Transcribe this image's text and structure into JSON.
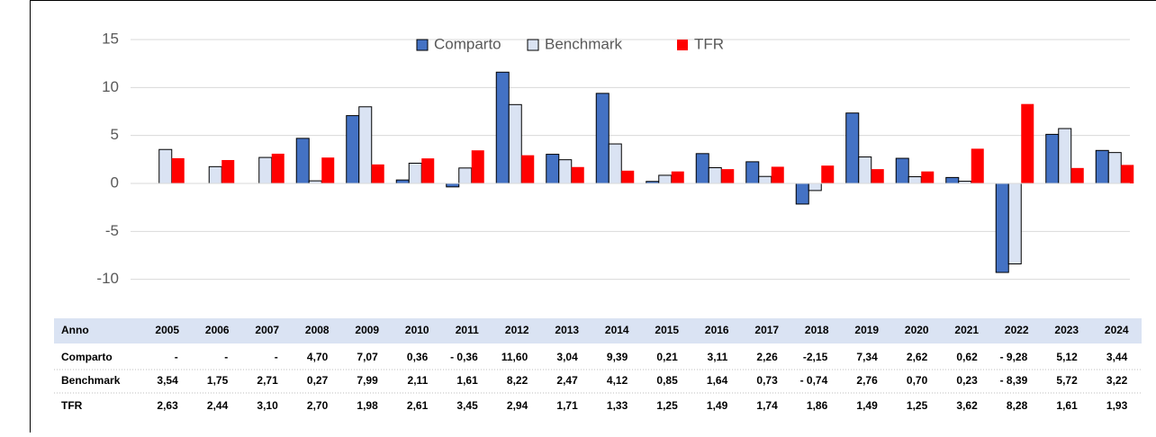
{
  "chart_data": {
    "type": "bar",
    "table_header": "Anno",
    "categories": [
      "2005",
      "2006",
      "2007",
      "2008",
      "2009",
      "2010",
      "2011",
      "2012",
      "2013",
      "2014",
      "2015",
      "2016",
      "2017",
      "2018",
      "2019",
      "2020",
      "2021",
      "2022",
      "2023",
      "2024"
    ],
    "series": [
      {
        "name": "Comparto",
        "color": "#4472c4",
        "values": [
          null,
          null,
          null,
          4.7,
          7.07,
          0.36,
          -0.36,
          11.6,
          3.04,
          9.39,
          0.21,
          3.11,
          2.26,
          -2.15,
          7.34,
          2.62,
          0.62,
          -9.28,
          5.12,
          3.44
        ],
        "value_labels": [
          "-",
          "-",
          "-",
          "4,70",
          "7,07",
          "0,36",
          "- 0,36",
          "11,60",
          "3,04",
          "9,39",
          "0,21",
          "3,11",
          "2,26",
          "-2,15",
          "7,34",
          "2,62",
          "0,62",
          "- 9,28",
          "5,12",
          "3,44"
        ]
      },
      {
        "name": "Benchmark",
        "color": "#dae3f3",
        "values": [
          3.54,
          1.75,
          2.71,
          0.27,
          7.99,
          2.11,
          1.61,
          8.22,
          2.47,
          4.12,
          0.85,
          1.64,
          0.73,
          -0.74,
          2.76,
          0.7,
          0.23,
          -8.39,
          5.72,
          3.22
        ],
        "value_labels": [
          "3,54",
          "1,75",
          "2,71",
          "0,27",
          "7,99",
          "2,11",
          "1,61",
          "8,22",
          "2,47",
          "4,12",
          "0,85",
          "1,64",
          "0,73",
          "- 0,74",
          "2,76",
          "0,70",
          "0,23",
          "- 8,39",
          "5,72",
          "3,22"
        ]
      },
      {
        "name": "TFR",
        "color": "#ff0000",
        "values": [
          2.63,
          2.44,
          3.1,
          2.7,
          1.98,
          2.61,
          3.45,
          2.94,
          1.71,
          1.33,
          1.25,
          1.49,
          1.74,
          1.86,
          1.49,
          1.25,
          3.62,
          8.28,
          1.61,
          1.93
        ],
        "value_labels": [
          "2,63",
          "2,44",
          "3,10",
          "2,70",
          "1,98",
          "2,61",
          "3,45",
          "2,94",
          "1,71",
          "1,33",
          "1,25",
          "1,49",
          "1,74",
          "1,86",
          "1,49",
          "1,25",
          "3,62",
          "8,28",
          "1,61",
          "1,93"
        ]
      }
    ],
    "ylim": [
      -12,
      15
    ],
    "yticks": [
      -10,
      -5,
      0,
      5,
      10,
      15
    ],
    "grid": true,
    "legend": "top"
  }
}
